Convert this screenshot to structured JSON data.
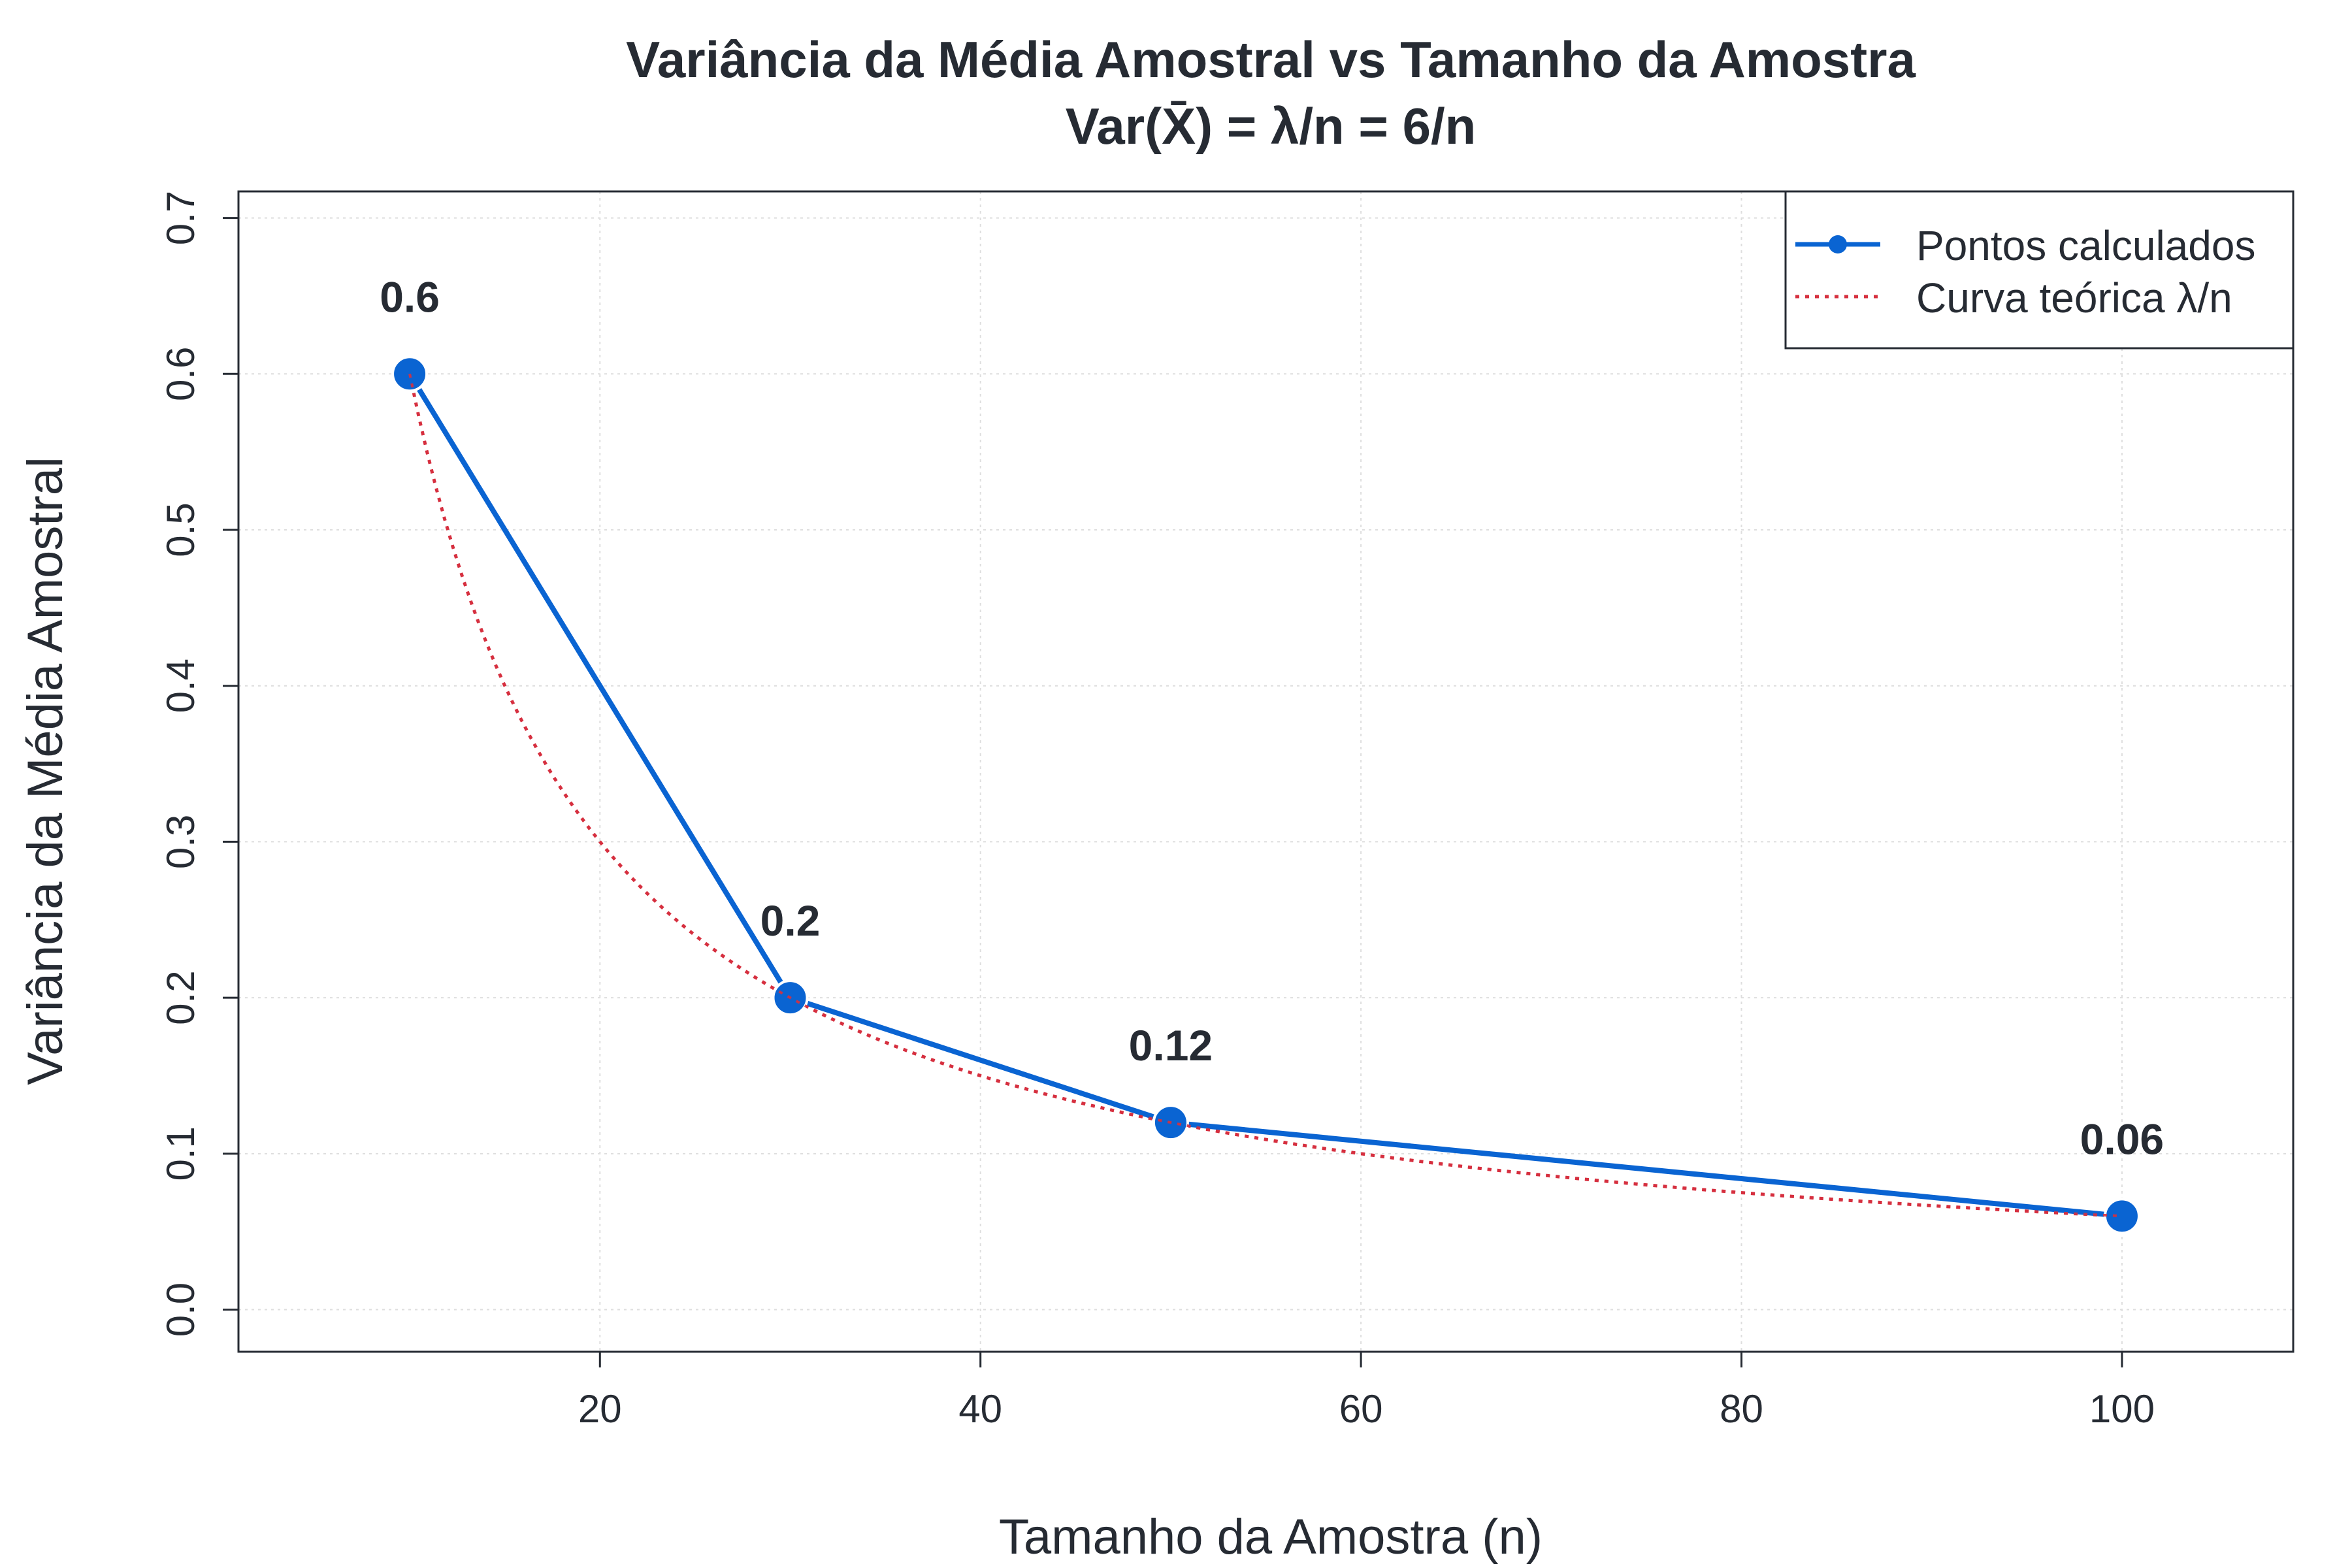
{
  "chart_data": {
    "type": "line",
    "title": "Variância da Média Amostral vs Tamanho da Amostra",
    "subtitle": "Var(X̄) = λ/n = 6/n",
    "xlabel": "Tamanho da Amostra (n)",
    "ylabel": "Variância da Média Amostral",
    "xlim": [
      1,
      109
    ],
    "ylim": [
      -0.027,
      0.717
    ],
    "xticks": [
      20,
      40,
      60,
      80,
      100
    ],
    "yticks": [
      0.0,
      0.1,
      0.2,
      0.3,
      0.4,
      0.5,
      0.6,
      0.7
    ],
    "grid": true,
    "legend_position": "top-right",
    "series": [
      {
        "name": "Pontos calculados",
        "color": "#0a64d2",
        "style": "line-with-points",
        "x": [
          10,
          30,
          50,
          100
        ],
        "y": [
          0.6,
          0.2,
          0.12,
          0.06
        ],
        "labels": [
          "0.6",
          "0.2",
          "0.12",
          "0.06"
        ]
      },
      {
        "name": "Curva teórica λ/n",
        "color": "#d6303f",
        "style": "dotted",
        "formula": "6/n",
        "lambda": 6,
        "x_range": [
          10,
          100
        ]
      }
    ]
  }
}
